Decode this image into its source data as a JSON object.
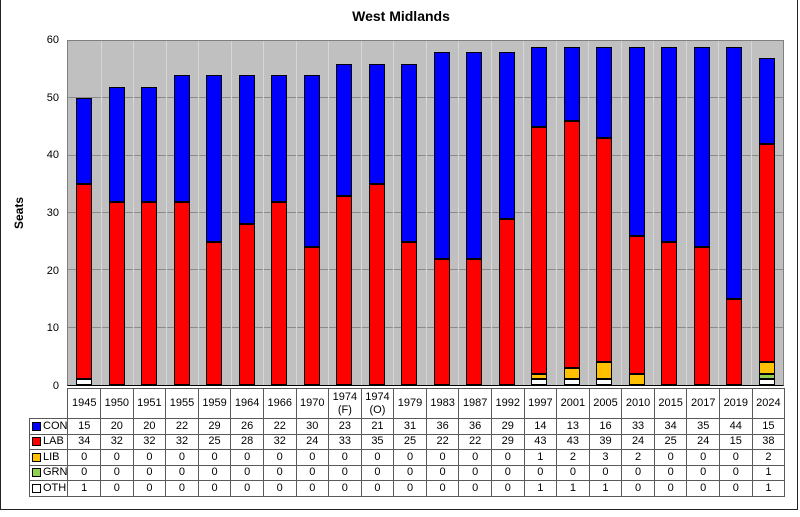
{
  "chart_data": {
    "type": "bar",
    "stacked": true,
    "title": "West Midlands",
    "ylabel": "Seats",
    "ylim": [
      0,
      60
    ],
    "yticks": [
      0,
      10,
      20,
      30,
      40,
      50,
      60
    ],
    "grid": "horizontal",
    "legend_position": "table-left",
    "plot_bg_color": "#C0C0C0",
    "gridline_color": "#8a8a8a",
    "column_separator_color": "#d6d6d6",
    "categories": [
      "1945",
      "1950",
      "1951",
      "1955",
      "1959",
      "1964",
      "1966",
      "1970",
      "1974 (F)",
      "1974 (O)",
      "1979",
      "1983",
      "1987",
      "1992",
      "1997",
      "2001",
      "2005",
      "2010",
      "2015",
      "2017",
      "2019",
      "2024"
    ],
    "series": [
      {
        "name": "CON",
        "color": "#0000FF",
        "values": [
          15,
          20,
          20,
          22,
          29,
          26,
          22,
          30,
          23,
          21,
          31,
          36,
          36,
          29,
          14,
          13,
          16,
          33,
          34,
          35,
          44,
          15
        ]
      },
      {
        "name": "LAB",
        "color": "#FF0000",
        "values": [
          34,
          32,
          32,
          32,
          25,
          28,
          32,
          24,
          33,
          35,
          25,
          22,
          22,
          29,
          43,
          43,
          39,
          24,
          25,
          24,
          15,
          38
        ]
      },
      {
        "name": "LIB",
        "color": "#FFC000",
        "values": [
          0,
          0,
          0,
          0,
          0,
          0,
          0,
          0,
          0,
          0,
          0,
          0,
          0,
          0,
          1,
          2,
          3,
          2,
          0,
          0,
          0,
          2
        ]
      },
      {
        "name": "GRN",
        "color": "#92D050",
        "values": [
          0,
          0,
          0,
          0,
          0,
          0,
          0,
          0,
          0,
          0,
          0,
          0,
          0,
          0,
          0,
          0,
          0,
          0,
          0,
          0,
          0,
          1
        ]
      },
      {
        "name": "OTH",
        "color": "#FFFFFF",
        "values": [
          1,
          0,
          0,
          0,
          0,
          0,
          0,
          0,
          0,
          0,
          0,
          0,
          0,
          0,
          1,
          1,
          1,
          0,
          0,
          0,
          0,
          1
        ]
      }
    ],
    "stack_order_bottom_to_top": [
      "OTH",
      "GRN",
      "LIB",
      "LAB",
      "CON"
    ]
  }
}
